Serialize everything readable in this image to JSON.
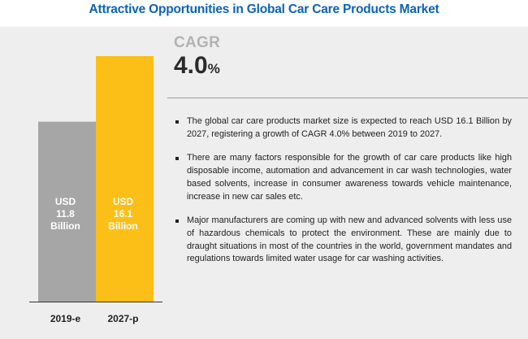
{
  "title": "Attractive Opportunities in Global Car Care Products Market",
  "cagr": {
    "label": "CAGR",
    "value": "4.0",
    "unit": "%"
  },
  "bullets": [
    "The global car care products market size is expected to reach USD 16.1 Billion by 2027, registering a growth of CAGR 4.0% between 2019 to 2027.",
    "There are many factors responsible for the growth of car care products like high disposable income, automation and advancement in car wash technologies, water based solvents, increase in consumer awareness towards vehicle maintenance, increase in new car sales etc.",
    "Major manufacturers are coming up with new and advanced solvents with less use of hazardous chemicals to protect the environment. These are mainly due to draught situations in most of the countries in the world, government mandates and regulations towards limited water usage for car washing activities."
  ],
  "chart_data": {
    "type": "bar",
    "categories": [
      "2019-e",
      "2027-p"
    ],
    "values": [
      11.8,
      16.1
    ],
    "bar_labels": [
      [
        "USD",
        "11.8",
        "Billion"
      ],
      [
        "USD",
        "16.1",
        "Billion"
      ]
    ],
    "colors": [
      "#a6a6a6",
      "#fbbf17"
    ],
    "ylim": [
      0,
      16.1
    ],
    "title": "",
    "xlabel": "",
    "ylabel": "",
    "grid": false,
    "legend": false
  },
  "colors": {
    "title": "#0b63b6",
    "panel_background": "#eeeeee",
    "cagr_label": "#b3b3b3",
    "cagr_value": "#2b2b2b",
    "axis": "#333333"
  }
}
